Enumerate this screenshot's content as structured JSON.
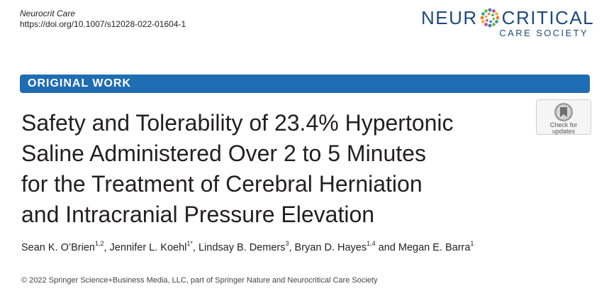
{
  "header": {
    "journal": "Neurocrit Care",
    "doi": "https://doi.org/10.1007/s12028-022-01604-1"
  },
  "logo": {
    "word_left": "NEUR",
    "word_right": "CRITICAL",
    "subtitle": "CARE SOCIETY",
    "color": "#1f4a7d",
    "icon": "neuron-circle-icon"
  },
  "banner": {
    "label": "ORIGINAL WORK",
    "color": "#1f6db3"
  },
  "title": {
    "lines": [
      "Safety and Tolerability of 23.4% Hypertonic",
      "Saline Administered Over 2 to 5 Minutes",
      "for the Treatment of Cerebral Herniation",
      "and Intracranial Pressure Elevation"
    ]
  },
  "check_badge": {
    "line1": "Check for",
    "line2": "updates",
    "icon": "check-for-updates-icon"
  },
  "authors": [
    {
      "name": "Sean K. O’Brien",
      "sup": "1,2",
      "sep": ", "
    },
    {
      "name": "Jennifer L. Koehl",
      "sup": "1*",
      "sep": ", "
    },
    {
      "name": "Lindsay B. Demers",
      "sup": "3",
      "sep": ", "
    },
    {
      "name": "Bryan D. Hayes",
      "sup": "1,4",
      "sep": " and "
    },
    {
      "name": "Megan E. Barra",
      "sup": "1",
      "sep": ""
    }
  ],
  "copyright": "© 2022 Springer Science+Business Media, LLC, part of Springer Nature and Neurocritical Care Society"
}
